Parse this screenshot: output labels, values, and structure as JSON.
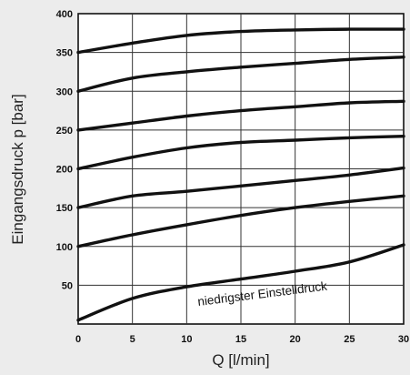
{
  "chart_data": {
    "type": "line",
    "title": "",
    "xlabel": "Q [l/min]",
    "ylabel": "Eingangsdruck p [bar]",
    "xlim": [
      0,
      30
    ],
    "ylim": [
      0,
      400
    ],
    "grid": true,
    "x_ticks": [
      "0",
      "5",
      "10",
      "15",
      "20",
      "25",
      "30"
    ],
    "y_ticks": [
      "50",
      "100",
      "150",
      "200",
      "250",
      "300",
      "350",
      "400"
    ],
    "annotation": "niedrigster Einstelldruck",
    "series": [
      {
        "x": [
          0,
          5,
          10,
          15,
          20,
          25,
          30
        ],
        "y": [
          350,
          362,
          372,
          377,
          379,
          380,
          380
        ]
      },
      {
        "x": [
          0,
          5,
          10,
          15,
          20,
          25,
          30
        ],
        "y": [
          300,
          317,
          325,
          331,
          336,
          341,
          344
        ]
      },
      {
        "x": [
          0,
          5,
          10,
          15,
          20,
          25,
          30
        ],
        "y": [
          250,
          259,
          268,
          275,
          280,
          285,
          287
        ]
      },
      {
        "x": [
          0,
          5,
          10,
          15,
          20,
          25,
          30
        ],
        "y": [
          200,
          215,
          227,
          234,
          237,
          240,
          242
        ]
      },
      {
        "x": [
          0,
          5,
          10,
          15,
          20,
          25,
          30
        ],
        "y": [
          150,
          165,
          171,
          178,
          185,
          192,
          201
        ]
      },
      {
        "x": [
          0,
          5,
          10,
          15,
          20,
          25,
          30
        ],
        "y": [
          100,
          115,
          128,
          140,
          150,
          158,
          165
        ]
      },
      {
        "x": [
          0,
          5,
          10,
          15,
          20,
          25,
          30
        ],
        "y": [
          5,
          33,
          48,
          58,
          68,
          80,
          102
        ]
      }
    ]
  }
}
